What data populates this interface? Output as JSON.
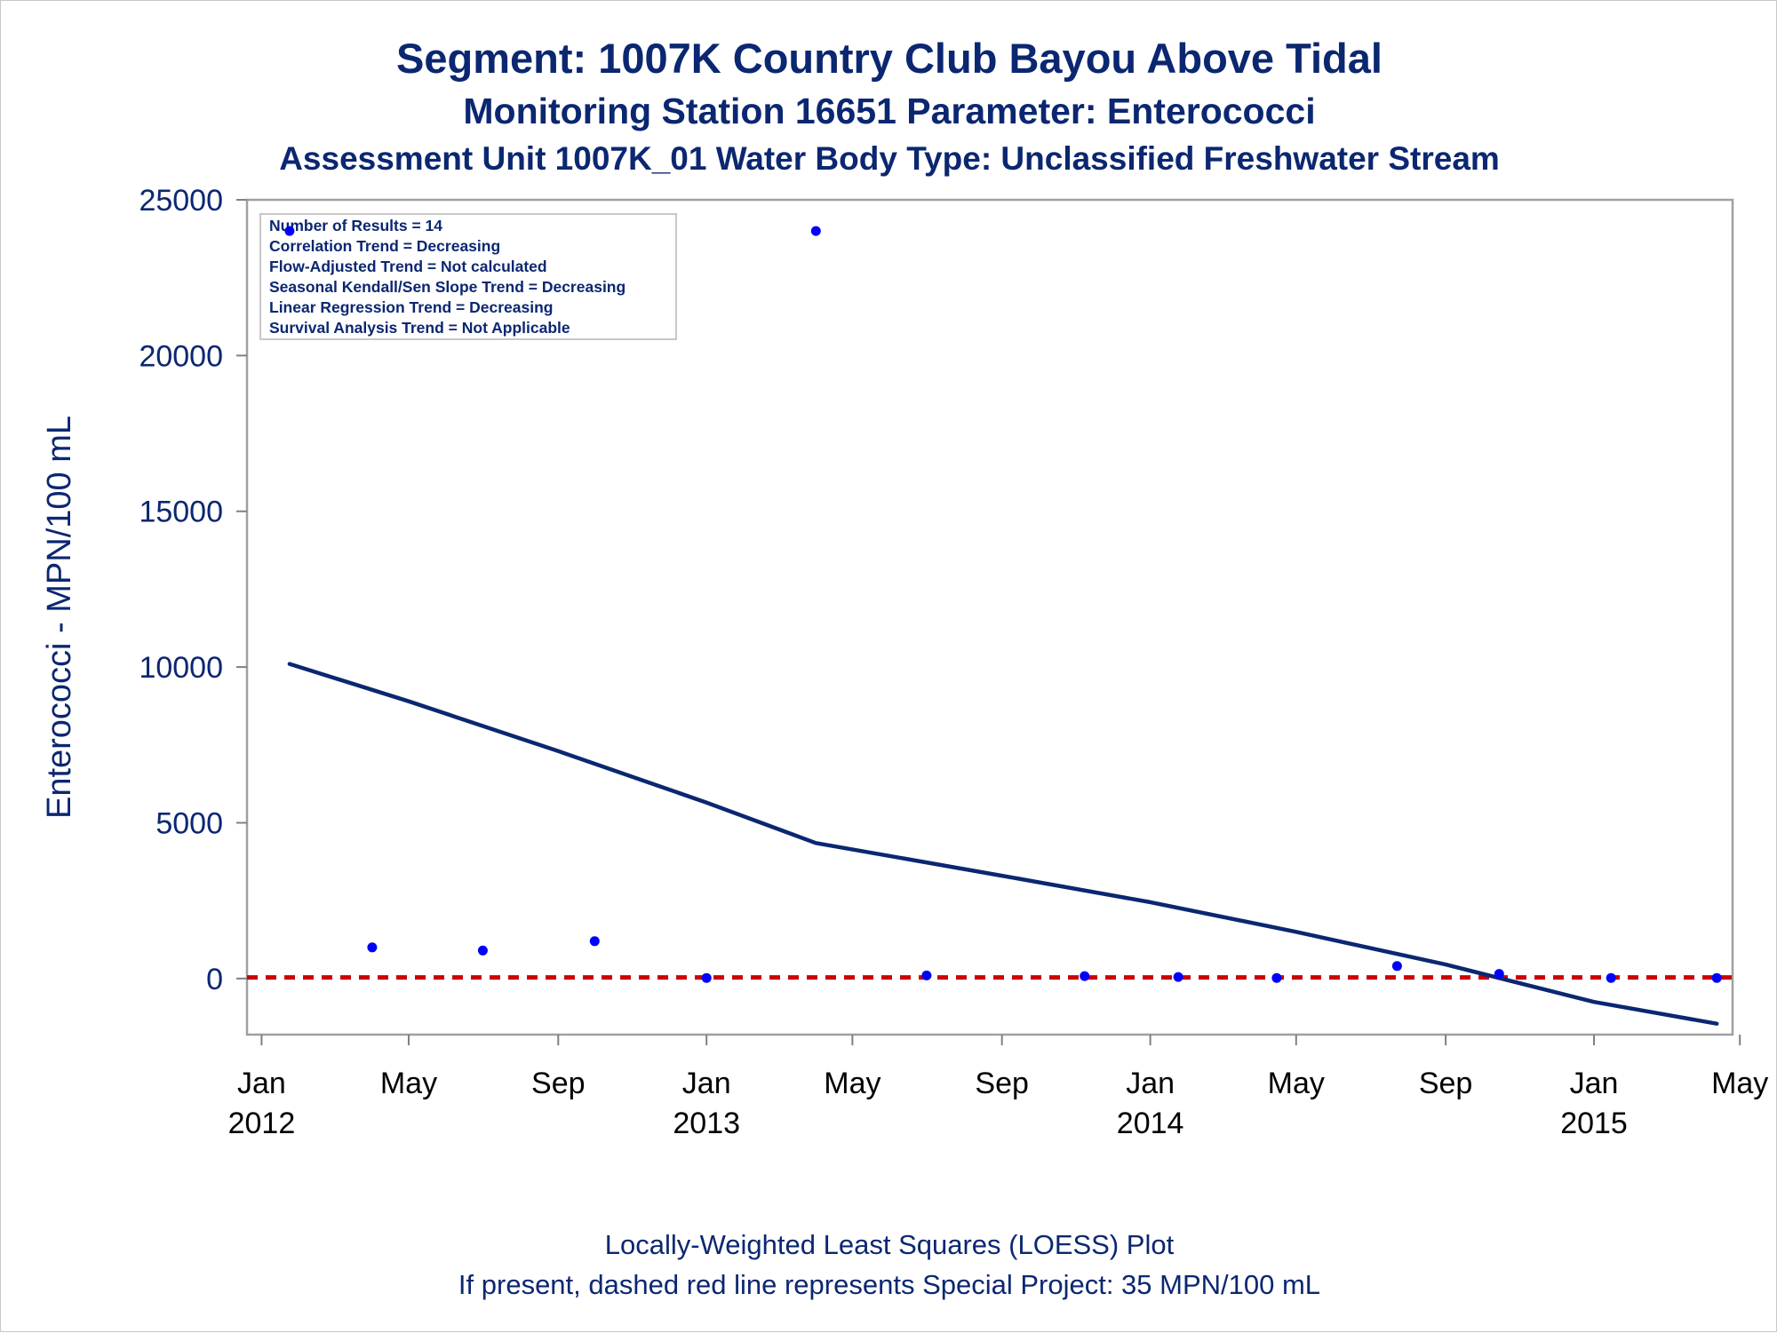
{
  "titles": {
    "line1": "Segment: 1007K  Country Club Bayou Above Tidal",
    "line2": "Monitoring Station 16651 Parameter: Enterococci",
    "line3": "Assessment Unit 1007K_01   Water Body Type: Unclassified Freshwater Stream"
  },
  "inset_stats": [
    "Number of Results = 14",
    "Correlation Trend = Decreasing",
    "Flow-Adjusted Trend = Not calculated",
    "Seasonal Kendall/Sen Slope Trend = Decreasing",
    "Linear Regression Trend = Decreasing",
    "Survival Analysis Trend = Not Applicable"
  ],
  "footnotes": {
    "line1": "Locally-Weighted Least Squares (LOESS) Plot",
    "line2": "If present, dashed red line represents Special Project: 35 MPN/100 mL"
  },
  "colors": {
    "title": "#0b2771",
    "points": "#0000ff",
    "loess": "#0b2771",
    "reference": "#cc0000",
    "frame": "#a0a0a0"
  },
  "chart_data": {
    "type": "scatter",
    "ylabel": "Enterococci - MPN/100 mL",
    "xlabel": "",
    "ylim": [
      -1800,
      25000
    ],
    "yticks": [
      0,
      5000,
      10000,
      15000,
      20000,
      25000
    ],
    "xlim": [
      "2011-12-20",
      "2015-04-25"
    ],
    "xticks": [
      {
        "date": "2012-01-01",
        "label": "Jan",
        "year": "2012"
      },
      {
        "date": "2012-05-01",
        "label": "May",
        "year": ""
      },
      {
        "date": "2012-09-01",
        "label": "Sep",
        "year": ""
      },
      {
        "date": "2013-01-01",
        "label": "Jan",
        "year": "2013"
      },
      {
        "date": "2013-05-01",
        "label": "May",
        "year": ""
      },
      {
        "date": "2013-09-01",
        "label": "Sep",
        "year": ""
      },
      {
        "date": "2014-01-01",
        "label": "Jan",
        "year": "2014"
      },
      {
        "date": "2014-05-01",
        "label": "May",
        "year": ""
      },
      {
        "date": "2014-09-01",
        "label": "Sep",
        "year": ""
      },
      {
        "date": "2015-01-01",
        "label": "Jan",
        "year": "2015"
      },
      {
        "date": "2015-05-01",
        "label": "May",
        "year": ""
      }
    ],
    "series": [
      {
        "type": "scatter",
        "points": [
          {
            "x": "2012-01-24",
            "y": 24000
          },
          {
            "x": "2012-04-01",
            "y": 1000
          },
          {
            "x": "2012-07-01",
            "y": 900
          },
          {
            "x": "2012-10-01",
            "y": 1200
          },
          {
            "x": "2013-01-01",
            "y": 20
          },
          {
            "x": "2013-04-01",
            "y": 24000
          },
          {
            "x": "2013-07-01",
            "y": 100
          },
          {
            "x": "2013-11-08",
            "y": 80
          },
          {
            "x": "2014-01-24",
            "y": 50
          },
          {
            "x": "2014-04-15",
            "y": 20
          },
          {
            "x": "2014-07-23",
            "y": 400
          },
          {
            "x": "2014-10-15",
            "y": 150
          },
          {
            "x": "2015-01-15",
            "y": 20
          },
          {
            "x": "2015-04-12",
            "y": 20
          }
        ]
      },
      {
        "type": "line",
        "points": [
          {
            "x": "2012-01-24",
            "y": 10100
          },
          {
            "x": "2012-05-01",
            "y": 8900
          },
          {
            "x": "2012-09-01",
            "y": 7300
          },
          {
            "x": "2013-01-01",
            "y": 5650
          },
          {
            "x": "2013-04-01",
            "y": 4350
          },
          {
            "x": "2013-09-01",
            "y": 3300
          },
          {
            "x": "2014-01-01",
            "y": 2450
          },
          {
            "x": "2014-05-01",
            "y": 1500
          },
          {
            "x": "2014-09-01",
            "y": 450
          },
          {
            "x": "2015-01-01",
            "y": -750
          },
          {
            "x": "2015-04-12",
            "y": -1450
          }
        ]
      },
      {
        "type": "reference",
        "y": 35
      }
    ]
  }
}
